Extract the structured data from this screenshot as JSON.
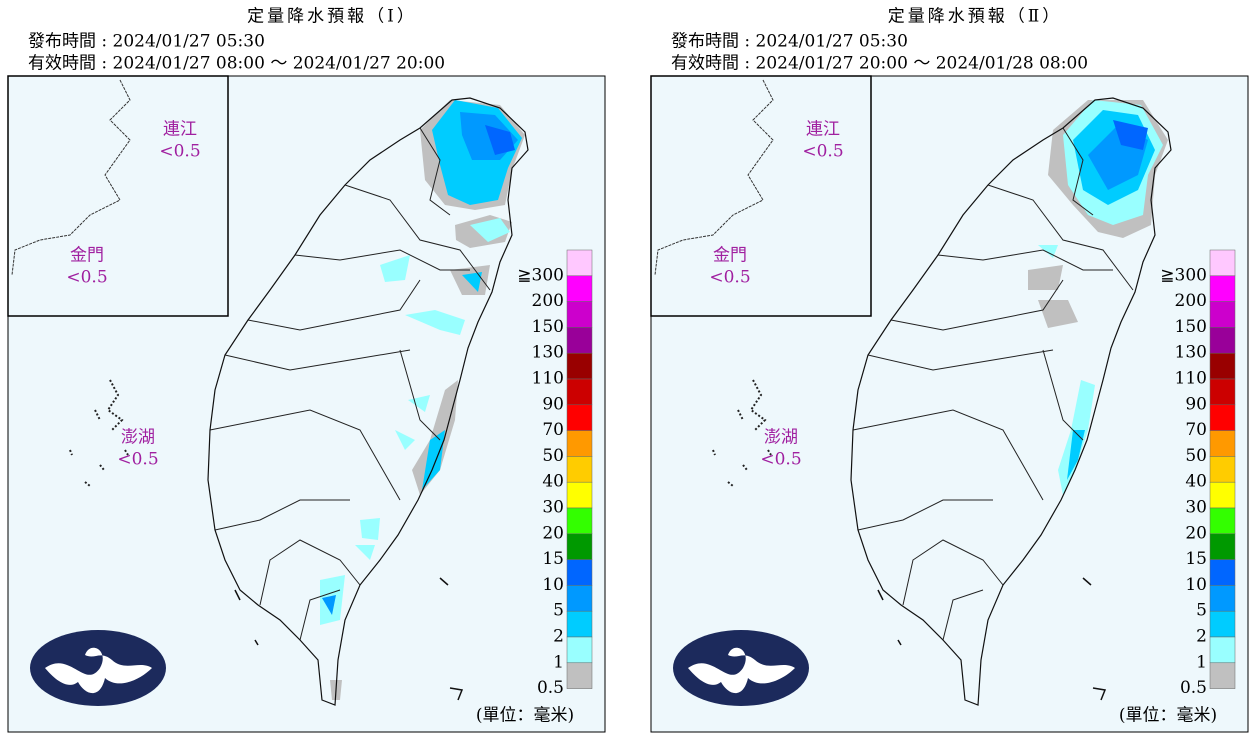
{
  "panels": [
    {
      "title": "定量降水預報（Ⅰ）",
      "issued": "發布時間 : 2024/01/27 05:30",
      "valid": "有效時間 : 2024/01/27 08:00 ～ 2024/01/27 20:00",
      "areas": [
        {
          "name": "連江",
          "amount": "<0.5"
        },
        {
          "name": "金門",
          "amount": "<0.5"
        },
        {
          "name": "澎湖",
          "amount": "<0.5"
        }
      ],
      "unit": "(單位：毫米)"
    },
    {
      "title": "定量降水預報（Ⅱ）",
      "issued": "發布時間 : 2024/01/27 05:30",
      "valid": "有效時間 : 2024/01/27 20:00 ～ 2024/01/28 08:00",
      "areas": [
        {
          "name": "連江",
          "amount": "<0.5"
        },
        {
          "name": "金門",
          "amount": "<0.5"
        },
        {
          "name": "澎湖",
          "amount": "<0.5"
        }
      ],
      "unit": "(單位：毫米)"
    }
  ],
  "legend": {
    "levels": [
      "≧300",
      "200",
      "150",
      "130",
      "110",
      "90",
      "70",
      "50",
      "40",
      "30",
      "20",
      "15",
      "10",
      "5",
      "2",
      "1",
      "0.5"
    ],
    "colors": [
      "#ffc8ff",
      "#ff00ff",
      "#cc00cc",
      "#990099",
      "#990000",
      "#cc0000",
      "#ff0000",
      "#ff9900",
      "#ffcc00",
      "#ffff00",
      "#33ff00",
      "#009900",
      "#0066ff",
      "#0099ff",
      "#00ccff",
      "#99ffff",
      "#c0c0c0"
    ]
  }
}
